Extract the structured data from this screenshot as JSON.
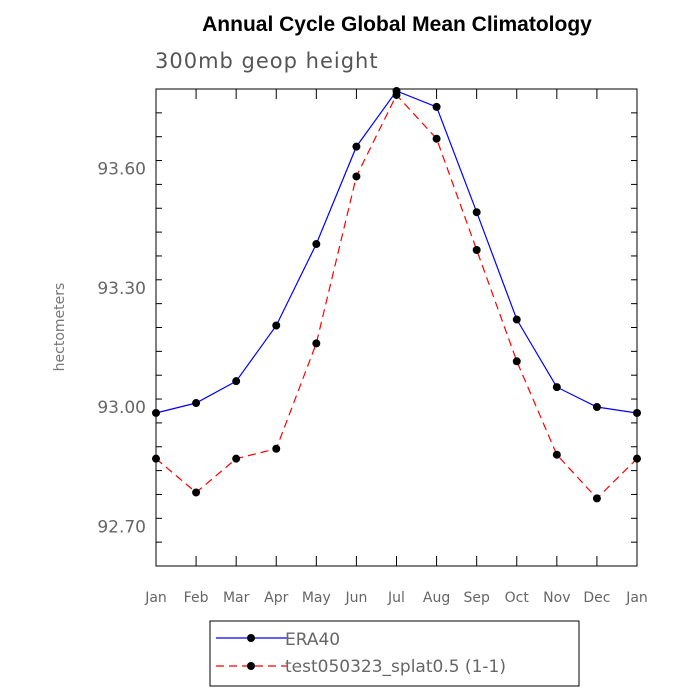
{
  "chart_data": {
    "type": "line",
    "title": "Annual Cycle Global Mean Climatology",
    "subtitle": "300mb geop height",
    "xlabel": "",
    "ylabel": "hectometers",
    "categories": [
      "Jan",
      "Feb",
      "Mar",
      "Apr",
      "May",
      "Jun",
      "Jul",
      "Aug",
      "Sep",
      "Oct",
      "Nov",
      "Dec",
      "Jan"
    ],
    "ylim": [
      92.6,
      93.8
    ],
    "yticks": [
      "92.70",
      "93.00",
      "93.30",
      "93.60"
    ],
    "ytick_values": [
      92.7,
      93.0,
      93.3,
      93.6
    ],
    "series": [
      {
        "name": "ERA40",
        "color": "#0000ff",
        "dash": "solid",
        "values": [
          92.985,
          93.01,
          93.065,
          93.205,
          93.41,
          93.655,
          93.795,
          93.755,
          93.49,
          93.22,
          93.05,
          93.0,
          92.985
        ]
      },
      {
        "name": "test050323_splat0.5 (1-1)",
        "color": "#ff0000",
        "dash": "dashed",
        "values": [
          92.87,
          92.785,
          92.87,
          92.895,
          93.16,
          93.58,
          93.785,
          93.675,
          93.395,
          93.115,
          92.88,
          92.77,
          92.87
        ]
      }
    ],
    "grid": false,
    "legend_position": "bottom-center"
  }
}
